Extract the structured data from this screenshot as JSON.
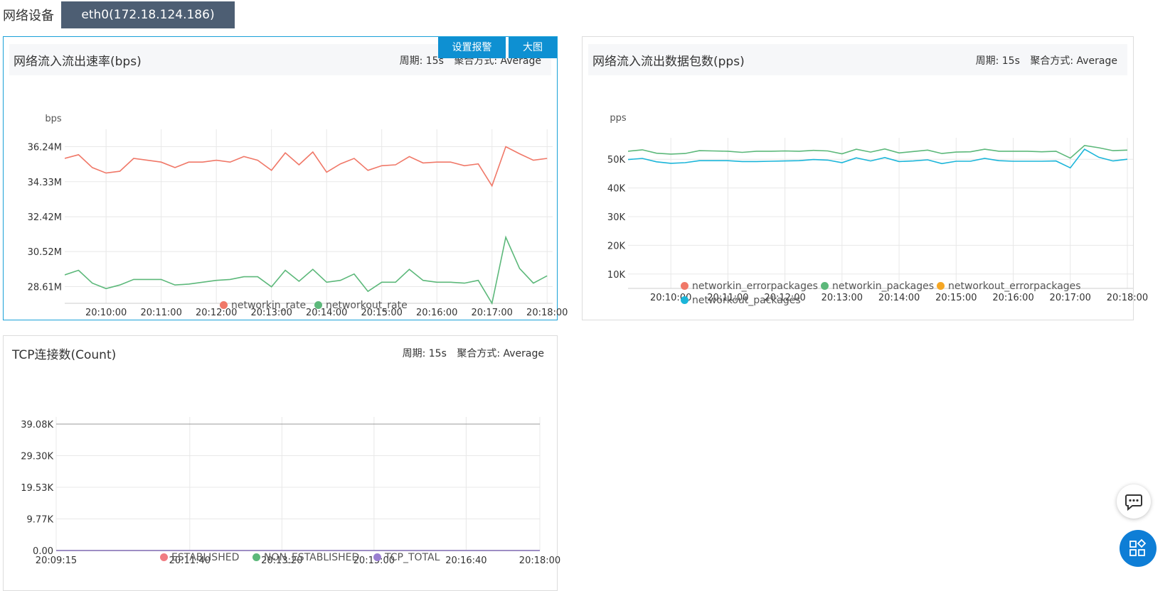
{
  "device": {
    "label": "网络设备",
    "selected": "eth0(172.18.124.186)"
  },
  "meta": {
    "period": "周期: 15s",
    "agg": "聚合方式: Average"
  },
  "buttons": {
    "alarm": "设置报警",
    "large": "大图"
  },
  "chart_data": [
    {
      "type": "line",
      "title": "网络流入流出速率(bps)",
      "ylabel": "bps",
      "ylim": [
        27.7,
        36.8
      ],
      "yticks": [
        "36.24M",
        "34.33M",
        "32.42M",
        "30.52M",
        "28.61M"
      ],
      "ytick_values": [
        36.24,
        34.33,
        32.42,
        30.52,
        28.61
      ],
      "xticks": [
        "20:10:00",
        "20:11:00",
        "20:12:00",
        "20:13:00",
        "20:14:00",
        "20:15:00",
        "20:16:00",
        "20:17:00",
        "20:18:00"
      ],
      "xtick_minutes": [
        10,
        11,
        12,
        13,
        14,
        15,
        16,
        17,
        18
      ],
      "xlim": [
        9.25,
        18.1
      ],
      "x_minutes": [
        9.25,
        9.5,
        9.75,
        10.0,
        10.25,
        10.5,
        10.75,
        11.0,
        11.25,
        11.5,
        11.75,
        12.0,
        12.25,
        12.5,
        12.75,
        13.0,
        13.25,
        13.5,
        13.75,
        14.0,
        14.25,
        14.5,
        14.75,
        15.0,
        15.25,
        15.5,
        15.75,
        16.0,
        16.25,
        16.5,
        16.75,
        17.0,
        17.25,
        17.5,
        17.75,
        18.0
      ],
      "series": [
        {
          "name": "networkin_rate",
          "color": "#f07868",
          "values": [
            35.6,
            35.8,
            35.1,
            34.8,
            34.9,
            35.6,
            35.5,
            35.4,
            35.1,
            35.4,
            35.4,
            35.5,
            35.4,
            35.7,
            35.5,
            34.95,
            35.9,
            35.25,
            35.95,
            34.85,
            35.3,
            35.6,
            34.95,
            35.2,
            35.25,
            35.7,
            35.35,
            35.4,
            35.4,
            35.2,
            35.3,
            34.1,
            36.24,
            35.85,
            35.5,
            35.6
          ]
        },
        {
          "name": "networkout_rate",
          "color": "#5cb87a",
          "values": [
            29.25,
            29.5,
            28.8,
            28.5,
            28.7,
            29.0,
            29.0,
            29.0,
            28.7,
            28.75,
            28.85,
            28.95,
            29.0,
            29.15,
            29.15,
            28.6,
            29.5,
            28.9,
            29.55,
            28.85,
            28.95,
            29.3,
            28.35,
            28.85,
            28.85,
            29.55,
            28.95,
            28.85,
            28.85,
            28.8,
            28.95,
            27.7,
            31.3,
            29.6,
            28.8,
            29.2
          ]
        }
      ],
      "legend_position": "bottom-center"
    },
    {
      "type": "line",
      "title": "网络流入流出数据包数(pps)",
      "ylabel": "pps",
      "ylim": [
        5000,
        55000
      ],
      "yticks": [
        "50K",
        "40K",
        "30K",
        "20K",
        "10K"
      ],
      "ytick_values": [
        50000,
        40000,
        30000,
        20000,
        10000
      ],
      "xticks": [
        "20:10:00",
        "20:11:00",
        "20:12:00",
        "20:13:00",
        "20:14:00",
        "20:15:00",
        "20:16:00",
        "20:17:00",
        "20:18:00"
      ],
      "xtick_minutes": [
        10,
        11,
        12,
        13,
        14,
        15,
        16,
        17,
        18
      ],
      "xlim": [
        9.25,
        18.1
      ],
      "x_minutes": [
        9.25,
        9.5,
        9.75,
        10.0,
        10.25,
        10.5,
        10.75,
        11.0,
        11.25,
        11.5,
        11.75,
        12.0,
        12.25,
        12.5,
        12.75,
        13.0,
        13.25,
        13.5,
        13.75,
        14.0,
        14.25,
        14.5,
        14.75,
        15.0,
        15.25,
        15.5,
        15.75,
        16.0,
        16.25,
        16.5,
        16.75,
        17.0,
        17.25,
        17.5,
        17.75,
        18.0
      ],
      "series": [
        {
          "name": "networkin_errorpackages",
          "color": "#f07868",
          "values": [
            0,
            0,
            0,
            0,
            0,
            0,
            0,
            0,
            0,
            0,
            0,
            0,
            0,
            0,
            0,
            0,
            0,
            0,
            0,
            0,
            0,
            0,
            0,
            0,
            0,
            0,
            0,
            0,
            0,
            0,
            0,
            0,
            0,
            0,
            0,
            0
          ]
        },
        {
          "name": "networkin_packages",
          "color": "#5cb87a",
          "values": [
            52800,
            53300,
            52100,
            51800,
            52000,
            53000,
            52900,
            52800,
            52400,
            52800,
            52800,
            52900,
            52800,
            53100,
            52900,
            51900,
            53500,
            52500,
            53600,
            52200,
            52700,
            53200,
            52000,
            52500,
            52600,
            53500,
            52800,
            52800,
            52800,
            52600,
            52800,
            50400,
            54800,
            54000,
            53000,
            53200
          ]
        },
        {
          "name": "networkout_errorpackages",
          "color": "#f5a623",
          "values": [
            0,
            0,
            0,
            0,
            0,
            0,
            0,
            0,
            0,
            0,
            0,
            0,
            0,
            0,
            0,
            0,
            0,
            0,
            0,
            0,
            0,
            0,
            0,
            0,
            0,
            0,
            0,
            0,
            0,
            0,
            0,
            0,
            0,
            0,
            0,
            0
          ]
        },
        {
          "name": "networkout_packages",
          "color": "#1ab5d9",
          "values": [
            49900,
            50300,
            49100,
            48600,
            48800,
            49500,
            49500,
            49500,
            49200,
            49200,
            49300,
            49400,
            49500,
            49900,
            49700,
            48800,
            50500,
            49400,
            50600,
            49200,
            49400,
            49800,
            48500,
            49300,
            49300,
            50300,
            49500,
            49300,
            49300,
            49300,
            49400,
            47000,
            53500,
            50700,
            49400,
            50000
          ]
        }
      ],
      "legend_position": "bottom-center"
    },
    {
      "type": "line",
      "title": "TCP连接数(Count)",
      "ylim": [
        0,
        39080
      ],
      "yticks": [
        "39.08K",
        "29.30K",
        "19.53K",
        "9.77K",
        "0.00"
      ],
      "ytick_values": [
        39080,
        29300,
        19530,
        9770,
        0
      ],
      "xticks": [
        "20:09:15",
        "20:11:40",
        "20:13:20",
        "20:15:00",
        "20:16:40",
        "20:18:00"
      ],
      "xtick_minutes": [
        9.25,
        11.6667,
        13.3333,
        15.0,
        16.6667,
        18.0
      ],
      "xlim": [
        9.25,
        18.0
      ],
      "x_minutes": [
        9.25,
        18.0
      ],
      "series": [
        {
          "name": "ESTABLISHED",
          "color": "#f07c82",
          "values": [
            0,
            0
          ]
        },
        {
          "name": "NON_ESTABLISHED",
          "color": "#5cb87a",
          "values": [
            0,
            0
          ]
        },
        {
          "name": "TCP_TOTAL",
          "color": "#9a7fd1",
          "values": [
            0,
            0
          ]
        }
      ],
      "legend_position": "bottom-center"
    }
  ]
}
